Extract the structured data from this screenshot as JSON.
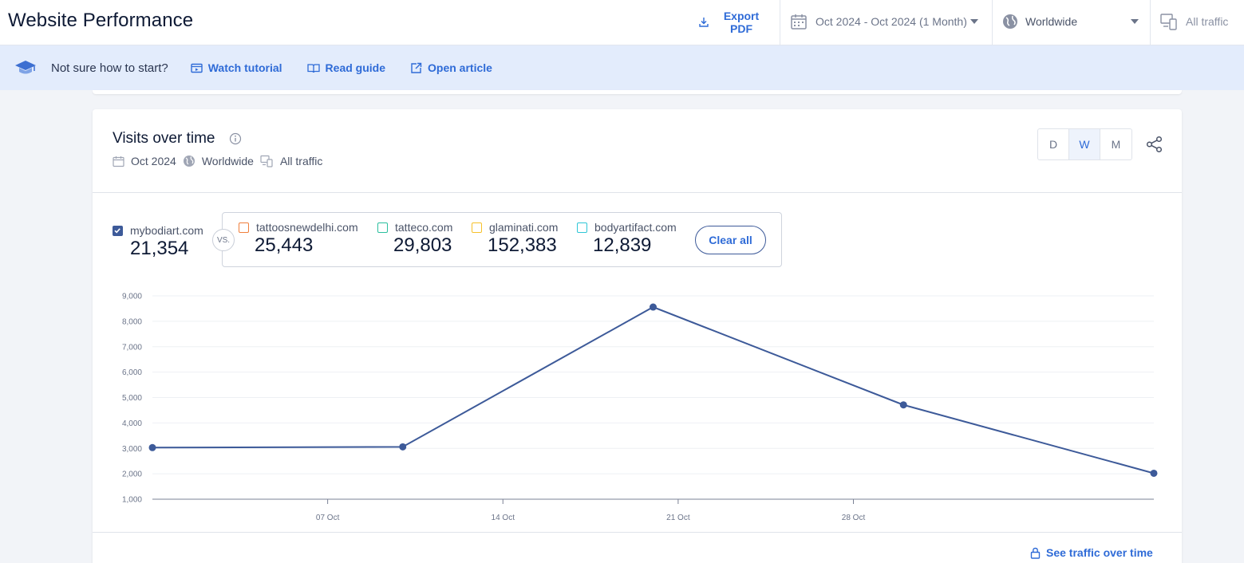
{
  "header": {
    "title": "Website Performance",
    "export_label": "Export PDF",
    "date_range": "Oct 2024 - Oct 2024 (1 Month)",
    "region": "Worldwide",
    "traffic": "All traffic"
  },
  "tutorial": {
    "question": "Not sure how to start?",
    "watch": "Watch tutorial",
    "read": "Read guide",
    "open": "Open article"
  },
  "card": {
    "title": "Visits over time",
    "meta_date": "Oct 2024",
    "meta_region": "Worldwide",
    "meta_traffic": "All traffic",
    "granularity": [
      "D",
      "W",
      "M"
    ],
    "active_granularity": "W",
    "see_traffic": "See traffic over time"
  },
  "sites": {
    "primary": {
      "domain": "mybodiart.com",
      "visits": "21,354",
      "color": "#3d5a99",
      "checked": true
    },
    "vs_label": "VS.",
    "competitors": [
      {
        "domain": "tattoosnewdelhi.com",
        "visits": "25,443",
        "color": "#f07f3c"
      },
      {
        "domain": "tatteco.com",
        "visits": "29,803",
        "color": "#2bbf9e"
      },
      {
        "domain": "glaminati.com",
        "visits": "152,383",
        "color": "#f6c12a"
      },
      {
        "domain": "bodyartifact.com",
        "visits": "12,839",
        "color": "#2ec6d6"
      }
    ],
    "clear_all": "Clear all"
  },
  "chart_data": {
    "type": "line",
    "series": [
      {
        "name": "mybodiart.com",
        "color": "#3d5a99",
        "x": [
          "2024-09-30",
          "2024-10-10",
          "2024-10-20",
          "2024-10-30",
          "2024-11-09"
        ],
        "values": [
          3030,
          3060,
          8560,
          4710,
          2020
        ]
      }
    ],
    "ylim": [
      1000,
      9000
    ],
    "yticks": [
      "1,000",
      "2,000",
      "3,000",
      "4,000",
      "5,000",
      "6,000",
      "7,000",
      "8,000",
      "9,000"
    ],
    "xticks": [
      "07 Oct",
      "14 Oct",
      "21 Oct",
      "28 Oct"
    ],
    "xlim": [
      "2024-09-30",
      "2024-11-09"
    ],
    "grid": true
  }
}
